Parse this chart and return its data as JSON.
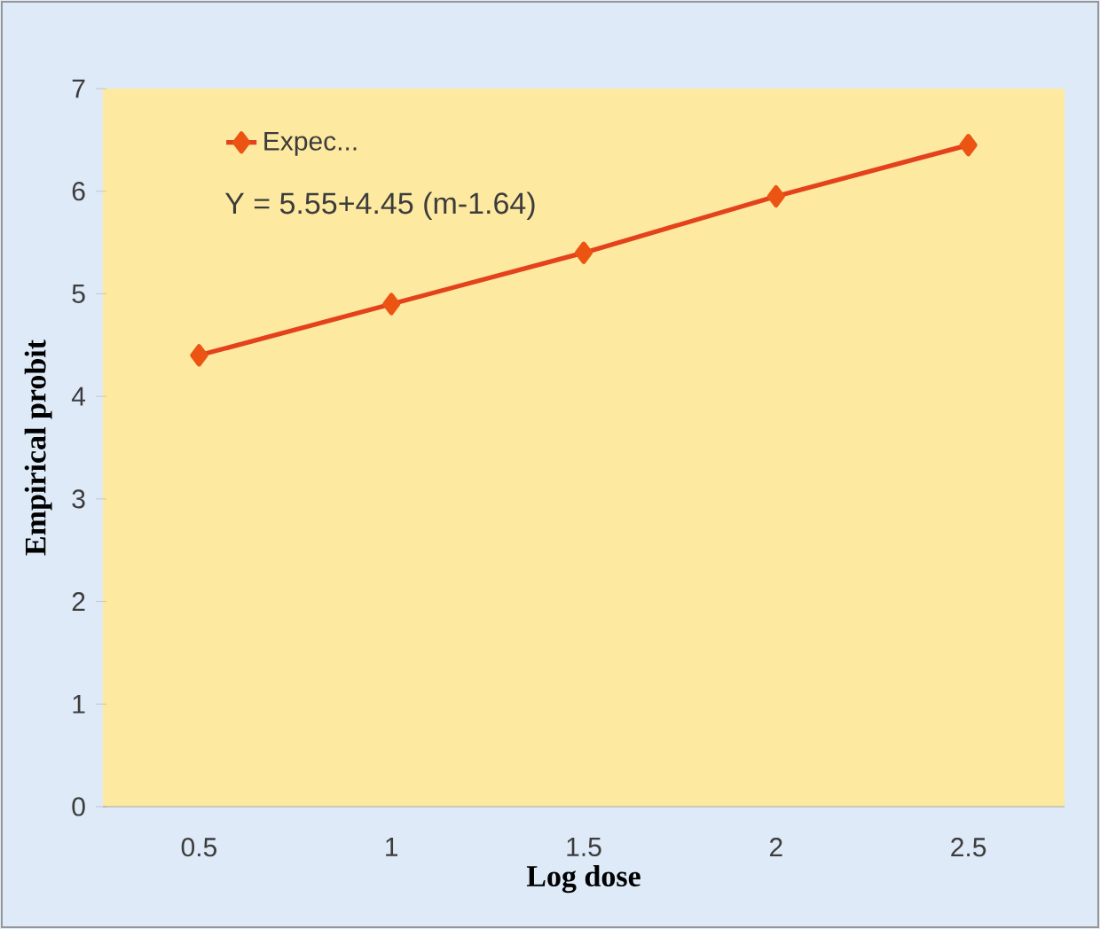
{
  "chart_data": {
    "type": "line",
    "xlabel": "Log dose",
    "ylabel": "Empirical probit",
    "categories": [
      "0.5",
      "1",
      "1.5",
      "2",
      "2.5"
    ],
    "series": [
      {
        "name": "Expec...",
        "color": "#e4421c",
        "values": [
          4.4,
          4.9,
          5.4,
          5.95,
          6.45
        ]
      }
    ],
    "ylim": [
      0,
      7
    ],
    "yticks": [
      0,
      1,
      2,
      3,
      4,
      5,
      6,
      7
    ],
    "annotations": [
      "Y = 5.55+4.45 (m-1.64)"
    ],
    "legend": "top left",
    "marker": "diamond",
    "line_style": "solid",
    "grid": false
  }
}
